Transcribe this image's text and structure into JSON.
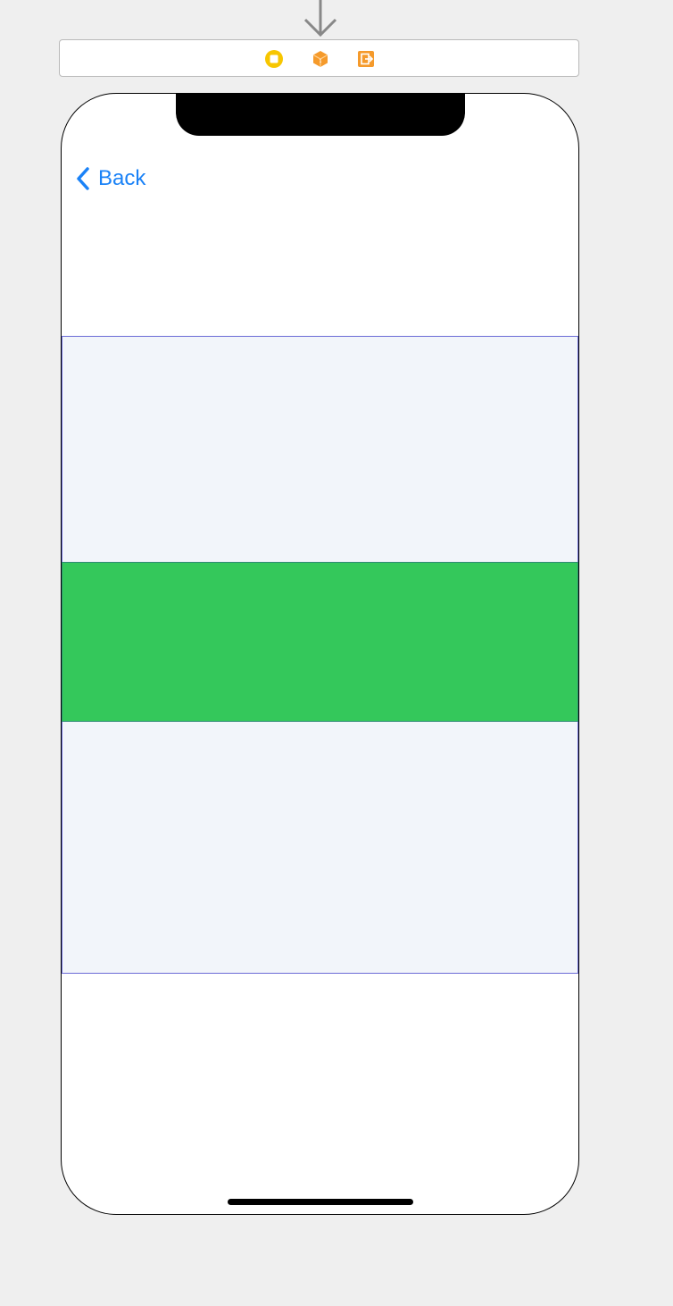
{
  "entry_point": {
    "icon": "down-arrow-icon",
    "color": "#888888"
  },
  "scene_dock": {
    "icons": [
      {
        "name": "view-controller-icon",
        "color": "#f7c600"
      },
      {
        "name": "first-responder-icon",
        "color": "#f59a2b"
      },
      {
        "name": "exit-icon",
        "color": "#f59a2b"
      }
    ]
  },
  "nav": {
    "back_label": "Back",
    "back_icon": "chevron-left-icon",
    "tint": "#1a82f7"
  },
  "colors": {
    "canvas_background": "#efefef",
    "container_background": "#f2f5fa",
    "container_border": "#6b6bd6",
    "green_view": "#34c85b"
  }
}
